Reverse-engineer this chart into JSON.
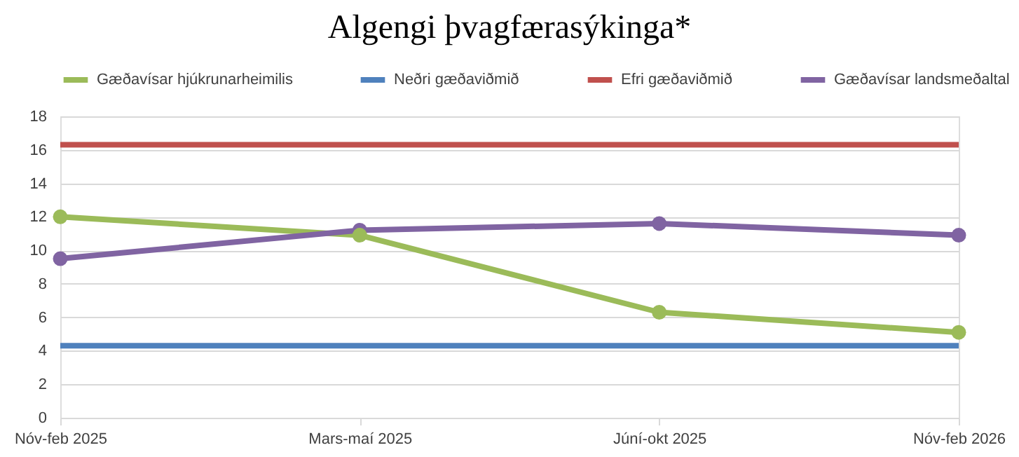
{
  "chart_data": {
    "type": "line",
    "title": "Algengi þvagfærasýkinga*",
    "categories": [
      "Nóv-feb 2025",
      "Mars-maí 2025",
      "Júní-okt 2025",
      "Nóv-feb 2026"
    ],
    "series": [
      {
        "name": "Gæðavísar hjúkrunarheimilis",
        "color": "#9bbb59",
        "marker": "circle",
        "values": [
          12.0,
          10.9,
          6.3,
          5.1
        ]
      },
      {
        "name": "Neðri gæðaviðmið",
        "color": "#4f81bd",
        "marker": "none",
        "values": [
          4.3,
          4.3,
          4.3,
          4.3
        ]
      },
      {
        "name": "Efri gæðaviðmið",
        "color": "#c0504d",
        "marker": "none",
        "values": [
          16.3,
          16.3,
          16.3,
          16.3
        ]
      },
      {
        "name": "Gæðavísar landsmeðaltal",
        "color": "#8064a2",
        "marker": "circle",
        "values": [
          9.5,
          11.2,
          11.6,
          10.9
        ]
      }
    ],
    "ylim": [
      0,
      18
    ],
    "yticks": [
      0,
      2,
      4,
      6,
      8,
      10,
      12,
      14,
      16,
      18
    ],
    "grid": "y",
    "legend": "top",
    "line_style": "solid"
  }
}
